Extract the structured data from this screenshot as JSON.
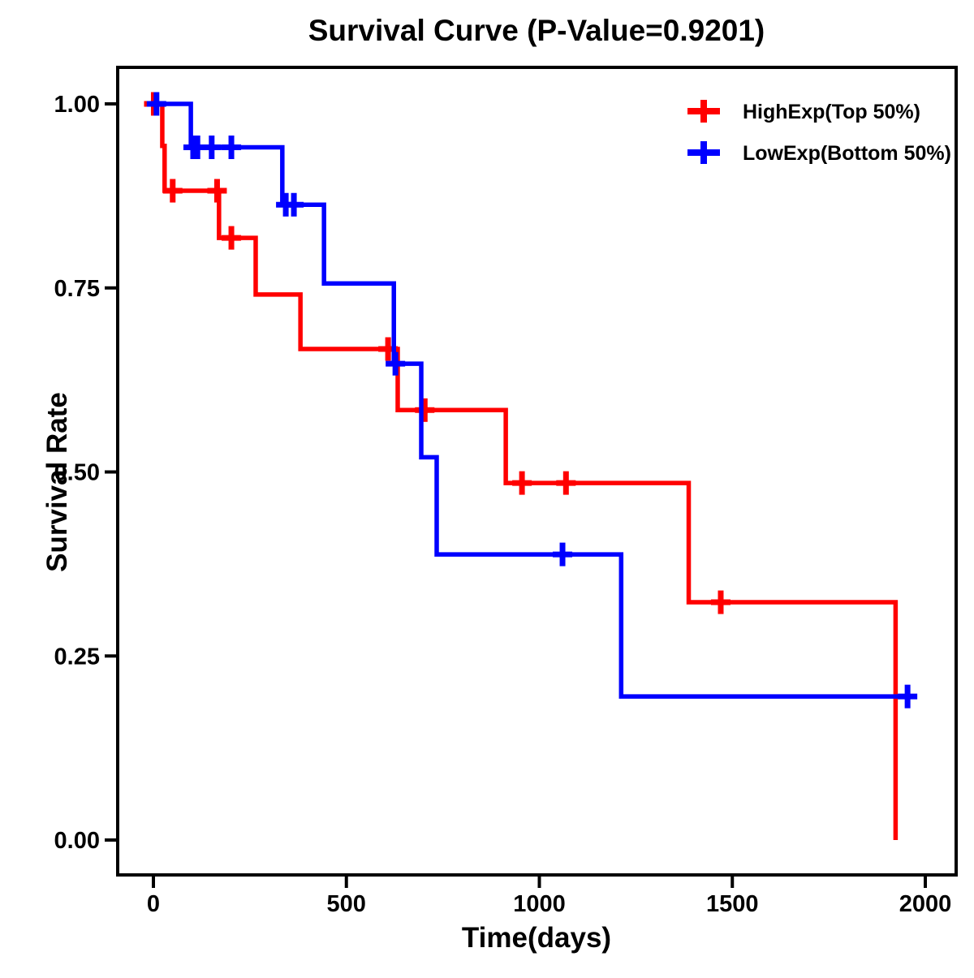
{
  "chart_data": {
    "type": "line",
    "subtype": "kaplan-meier-step-survival",
    "title": "Survival Curve (P-Value=0.9201)",
    "xlabel": "Time(days)",
    "ylabel": "Survival Rate",
    "p_value": "0.9201",
    "xlim": [
      0,
      2000
    ],
    "ylim": [
      0.0,
      1.0
    ],
    "grid": false,
    "legend_position": "top-right",
    "axis_color": "#000000",
    "xticks": [
      {
        "v": 0,
        "label": "0"
      },
      {
        "v": 500,
        "label": "500"
      },
      {
        "v": 1000,
        "label": "1000"
      },
      {
        "v": 1500,
        "label": "1500"
      },
      {
        "v": 2000,
        "label": "2000"
      }
    ],
    "yticks": [
      {
        "v": 0.0,
        "label": "0.00"
      },
      {
        "v": 0.25,
        "label": "0.25"
      },
      {
        "v": 0.5,
        "label": "0.50"
      },
      {
        "v": 0.75,
        "label": "0.75"
      },
      {
        "v": 1.0,
        "label": "1.00"
      }
    ],
    "series": [
      {
        "name": "HighExp(Top 50%)",
        "color": "#FF0000",
        "end_time": 1923,
        "steps": [
          [
            0,
            1.0
          ],
          [
            23,
            0.943
          ],
          [
            29,
            0.882
          ],
          [
            170,
            0.818
          ],
          [
            265,
            0.741
          ],
          [
            381,
            0.667
          ],
          [
            633,
            0.584
          ],
          [
            913,
            0.485
          ],
          [
            1387,
            0.323
          ],
          [
            1923,
            0.0
          ]
        ],
        "censors": [
          [
            1,
            1.0
          ],
          [
            50,
            0.882
          ],
          [
            165,
            0.882
          ],
          [
            202,
            0.818
          ],
          [
            608,
            0.667
          ],
          [
            703,
            0.584
          ],
          [
            955,
            0.485
          ],
          [
            1069,
            0.485
          ],
          [
            1470,
            0.323
          ]
        ]
      },
      {
        "name": "LowExp(Bottom 50%)",
        "color": "#0000FF",
        "end_time": 1969,
        "steps": [
          [
            0,
            1.0
          ],
          [
            97,
            0.941
          ],
          [
            334,
            0.863
          ],
          [
            442,
            0.756
          ],
          [
            623,
            0.647
          ],
          [
            694,
            0.52
          ],
          [
            734,
            0.388
          ],
          [
            1212,
            0.195
          ]
        ],
        "censors": [
          [
            8,
            1.0
          ],
          [
            103,
            0.941
          ],
          [
            114,
            0.941
          ],
          [
            151,
            0.941
          ],
          [
            202,
            0.941
          ],
          [
            343,
            0.863
          ],
          [
            364,
            0.863
          ],
          [
            627,
            0.647
          ],
          [
            1060,
            0.388
          ],
          [
            1954,
            0.195
          ]
        ]
      }
    ]
  },
  "legend": {
    "items": [
      {
        "label": "HighExp(Top 50%)",
        "color": "#FF0000"
      },
      {
        "label": "LowExp(Bottom 50%)",
        "color": "#0000FF"
      }
    ]
  }
}
